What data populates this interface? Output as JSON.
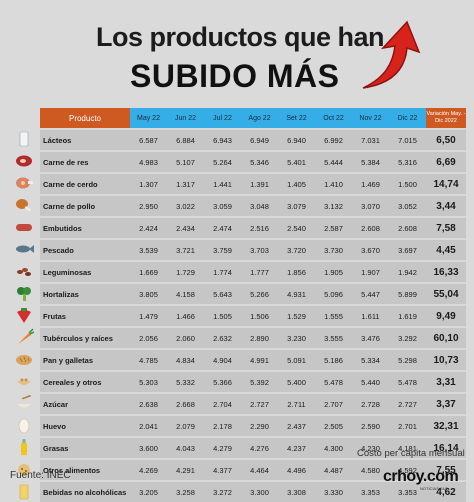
{
  "title": {
    "line1": "Los productos que han",
    "line2": "SUBIDO MÁS"
  },
  "colors": {
    "header_orange": "#ce5a22",
    "header_blue": "#35aee8",
    "cell_gray": "#c6c6c6",
    "background": "#dadada",
    "arrow_red": "#d8231d"
  },
  "chart_data": {
    "type": "table",
    "columns": [
      "Producto",
      "May 22",
      "Jun 22",
      "Jul 22",
      "Ago 22",
      "Set 22",
      "Oct 22",
      "Nov 22",
      "Dic 22",
      "Variación May. - Dic 2022"
    ],
    "rows": [
      {
        "product": "Lácteos",
        "icon": "milk-glass-icon",
        "values": [
          "6.587",
          "6.884",
          "6.943",
          "6.949",
          "6.940",
          "6.992",
          "7.031",
          "7.015"
        ],
        "variation": "6,50"
      },
      {
        "product": "Carne de res",
        "icon": "beef-steak-icon",
        "values": [
          "4.983",
          "5.107",
          "5.264",
          "5.346",
          "5.401",
          "5.444",
          "5.384",
          "5.316"
        ],
        "variation": "6,69"
      },
      {
        "product": "Carne de cerdo",
        "icon": "pork-ham-icon",
        "values": [
          "1.307",
          "1.317",
          "1.441",
          "1.391",
          "1.405",
          "1.410",
          "1.469",
          "1.500"
        ],
        "variation": "14,74"
      },
      {
        "product": "Carne de pollo",
        "icon": "chicken-leg-icon",
        "values": [
          "2.950",
          "3.022",
          "3.059",
          "3.048",
          "3.079",
          "3.132",
          "3.070",
          "3.052"
        ],
        "variation": "3,44"
      },
      {
        "product": "Embutidos",
        "icon": "sausage-icon",
        "values": [
          "2.424",
          "2.434",
          "2.474",
          "2.516",
          "2.540",
          "2.587",
          "2.608",
          "2.608"
        ],
        "variation": "7,58"
      },
      {
        "product": "Pescado",
        "icon": "fish-icon",
        "values": [
          "3.539",
          "3.721",
          "3.759",
          "3.703",
          "3.720",
          "3.730",
          "3.670",
          "3.697"
        ],
        "variation": "4,45"
      },
      {
        "product": "Leguminosas",
        "icon": "beans-icon",
        "values": [
          "1.669",
          "1.729",
          "1.774",
          "1.777",
          "1.856",
          "1.905",
          "1.907",
          "1.942"
        ],
        "variation": "16,33"
      },
      {
        "product": "Hortalizas",
        "icon": "broccoli-icon",
        "values": [
          "3.805",
          "4.158",
          "5.643",
          "5.266",
          "4.931",
          "5.096",
          "5.447",
          "5.899"
        ],
        "variation": "55,04"
      },
      {
        "product": "Frutas",
        "icon": "strawberry-icon",
        "values": [
          "1.479",
          "1.466",
          "1.505",
          "1.506",
          "1.529",
          "1.555",
          "1.611",
          "1.619"
        ],
        "variation": "9,49"
      },
      {
        "product": "Tubérculos y raíces",
        "icon": "carrot-icon",
        "values": [
          "2.056",
          "2.060",
          "2.632",
          "2.890",
          "3.230",
          "3.555",
          "3.476",
          "3.292"
        ],
        "variation": "60,10"
      },
      {
        "product": "Pan y galletas",
        "icon": "bread-icon",
        "values": [
          "4.785",
          "4.834",
          "4.904",
          "4.991",
          "5.091",
          "5.186",
          "5.334",
          "5.298"
        ],
        "variation": "10,73"
      },
      {
        "product": "Cereales y otros",
        "icon": "cereal-icon",
        "values": [
          "5.303",
          "5.332",
          "5.366",
          "5.392",
          "5.400",
          "5.478",
          "5.440",
          "5.478"
        ],
        "variation": "3,31"
      },
      {
        "product": "Azúcar",
        "icon": "sugar-icon",
        "values": [
          "2.638",
          "2.668",
          "2.704",
          "2.727",
          "2.711",
          "2.707",
          "2.728",
          "2.727"
        ],
        "variation": "3,37"
      },
      {
        "product": "Huevo",
        "icon": "egg-icon",
        "values": [
          "2.041",
          "2.079",
          "2.178",
          "2.290",
          "2.437",
          "2.505",
          "2.590",
          "2.701"
        ],
        "variation": "32,31"
      },
      {
        "product": "Grasas",
        "icon": "oil-bottle-icon",
        "values": [
          "3.600",
          "4.043",
          "4.279",
          "4.276",
          "4.237",
          "4.300",
          "4.230",
          "4.181"
        ],
        "variation": "16,14"
      },
      {
        "product": "Otros alimentos",
        "icon": "spices-icon",
        "values": [
          "4.269",
          "4.291",
          "4.377",
          "4.464",
          "4.496",
          "4.487",
          "4.580",
          "4.592"
        ],
        "variation": "7,55"
      },
      {
        "product": "Bebidas no alcohólicas",
        "icon": "drink-glass-icon",
        "values": [
          "3.205",
          "3.258",
          "3.272",
          "3.300",
          "3.308",
          "3.330",
          "3.353",
          "3.353"
        ],
        "variation": "4,62"
      }
    ]
  },
  "footer": {
    "note": "Costo per cápita mensual",
    "source": "Fuente: INEC",
    "logo": "crhoy.com",
    "logo_sub": "NOTICIAS 24/7"
  }
}
